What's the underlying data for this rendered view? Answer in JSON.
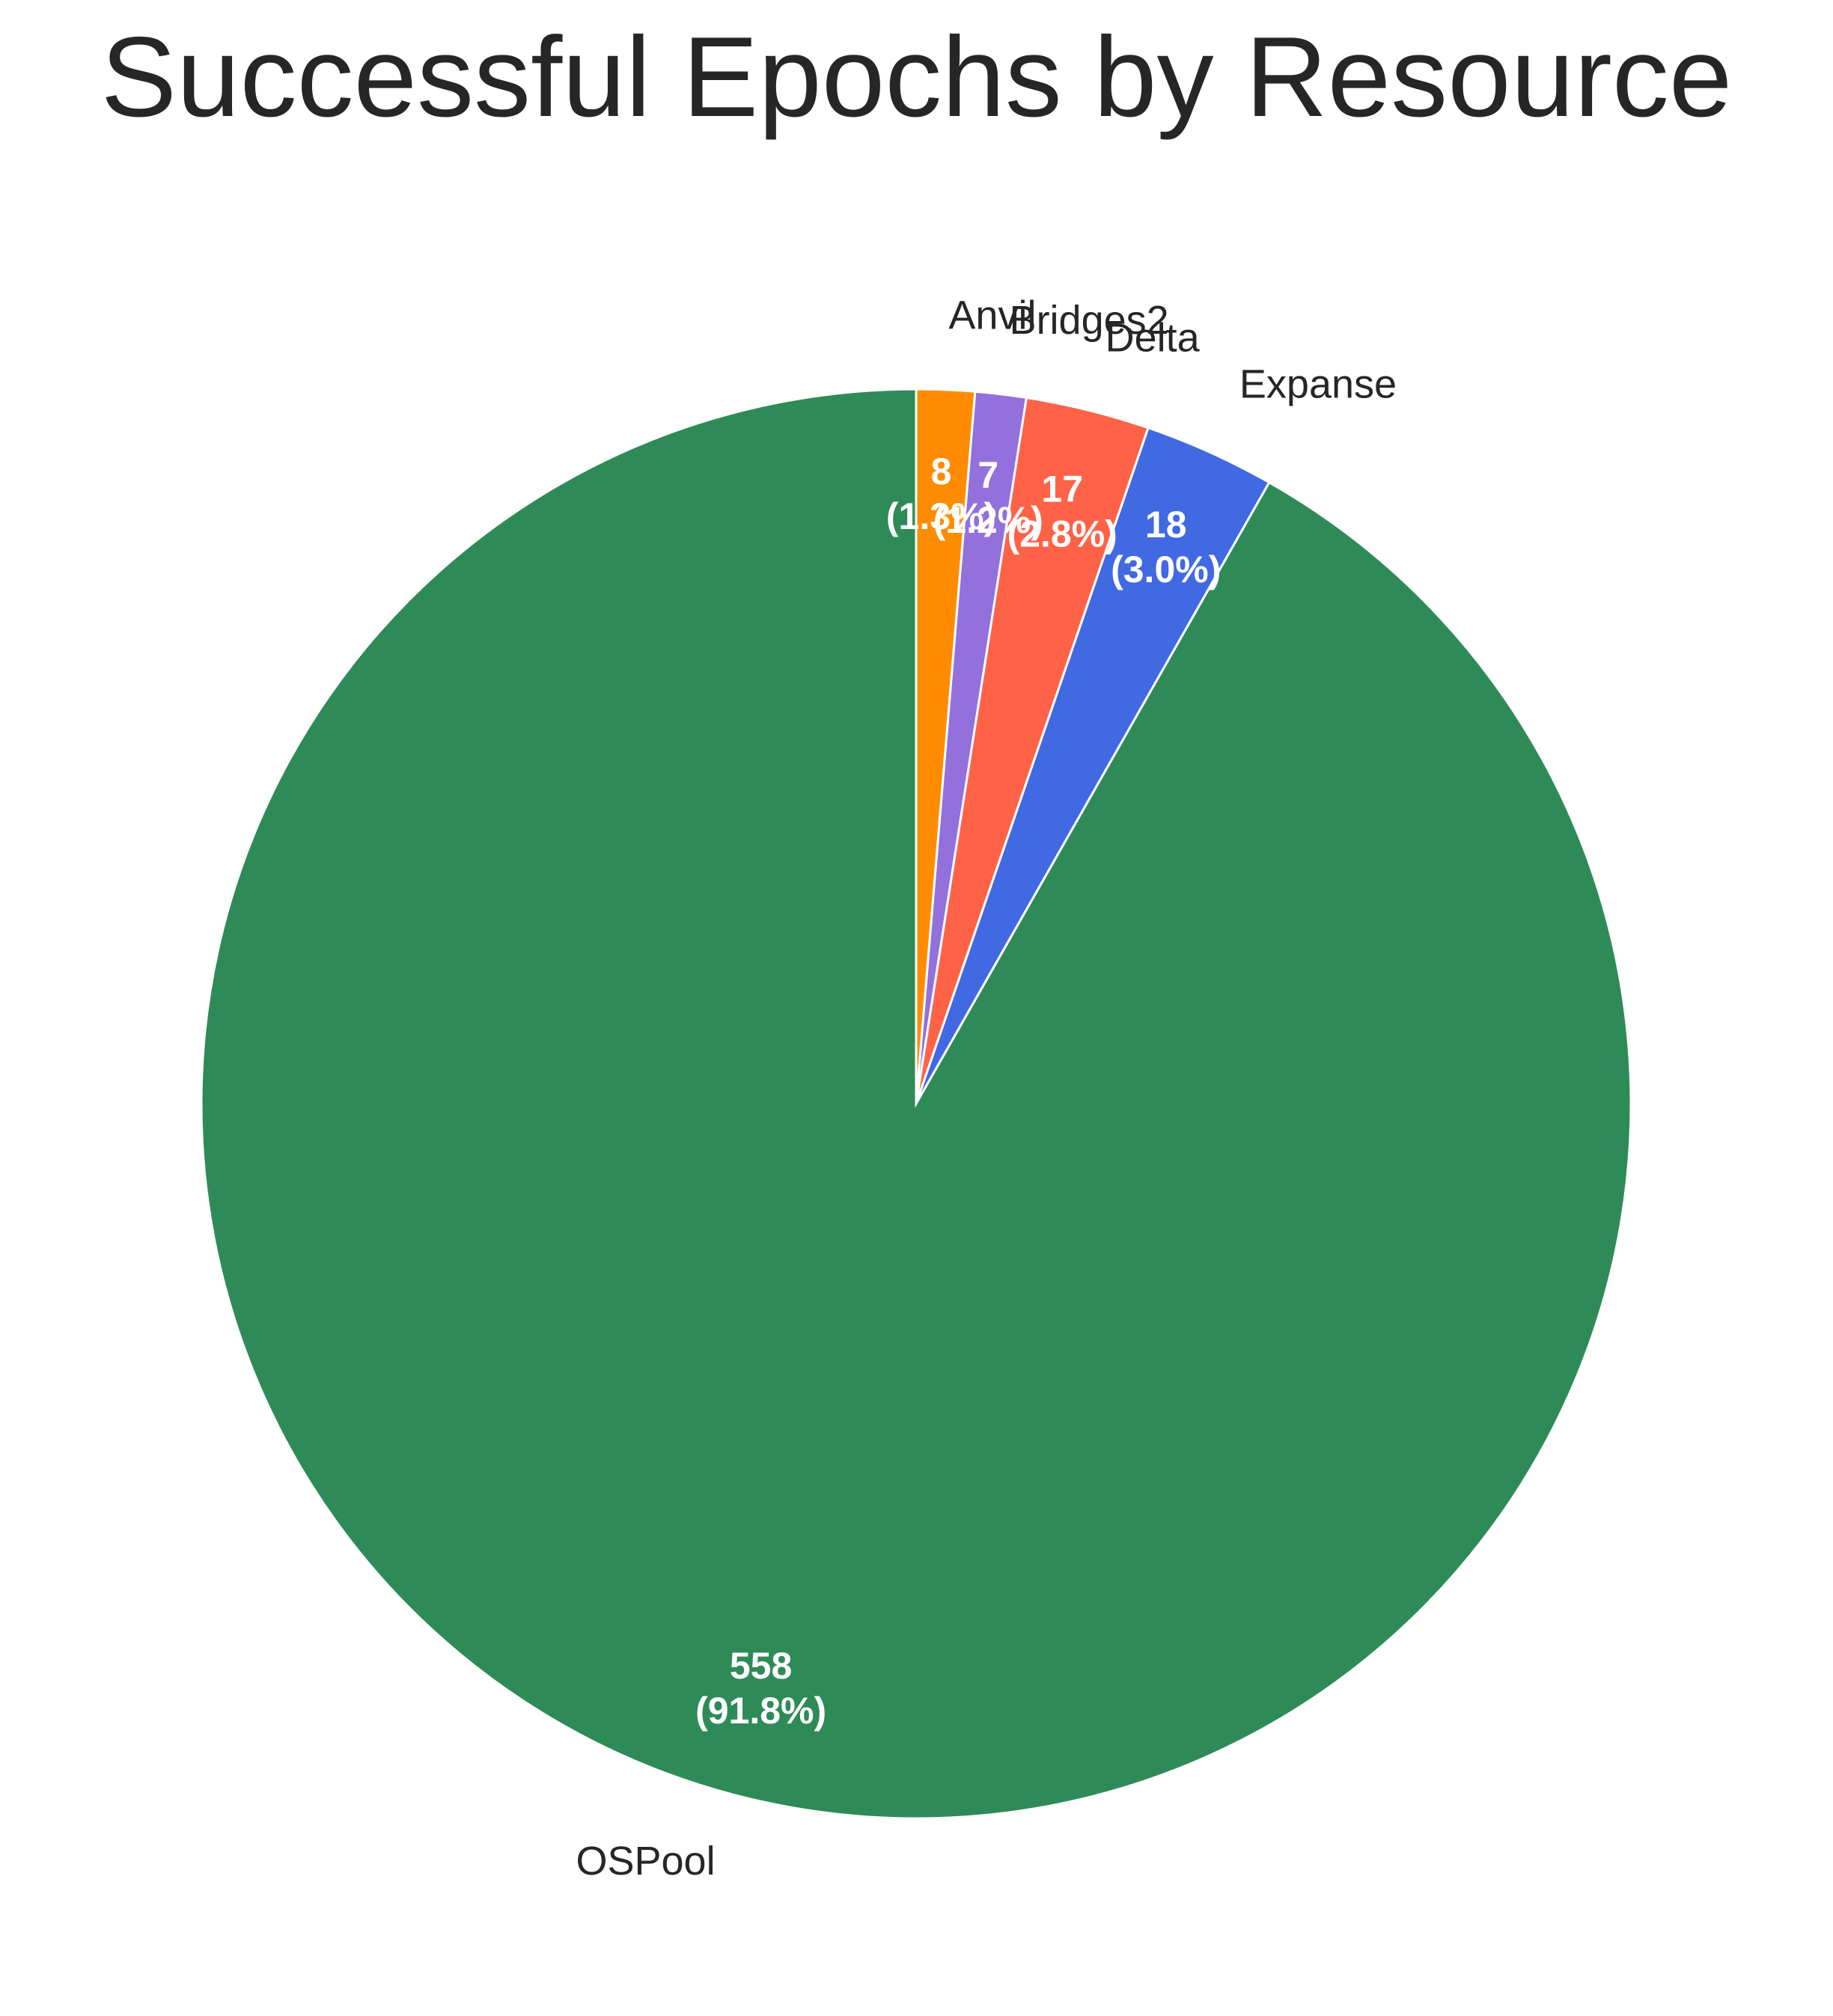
{
  "chart_data": {
    "type": "pie",
    "title": "Successful Epochs by Resource",
    "start_angle_deg": 90,
    "direction": "clockwise",
    "slices": [
      {
        "label": "Anvil",
        "value": 8,
        "display": "8",
        "percent_label": "(1.3%)",
        "color": "#ff8c00"
      },
      {
        "label": "Bridges2",
        "value": 7,
        "display": "7",
        "percent_label": "(1.2%)",
        "color": "#9370db"
      },
      {
        "label": "Delta",
        "value": 17,
        "display": "17",
        "percent_label": "(2.8%)",
        "color": "#ff6347"
      },
      {
        "label": "Expanse",
        "value": 18,
        "display": "18",
        "percent_label": "(3.0%)",
        "color": "#4169e1"
      },
      {
        "label": "OSPool",
        "value": 558,
        "display": "558",
        "percent_label": "(91.8%)",
        "color": "#2e8b57"
      }
    ]
  }
}
